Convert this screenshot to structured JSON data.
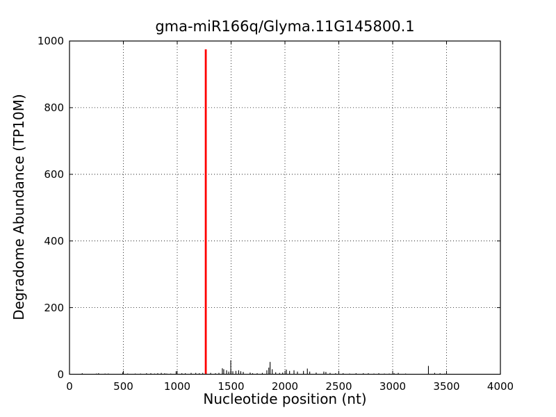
{
  "chart_data": {
    "type": "bar",
    "title": "gma-miR166q/Glyma.11G145800.1",
    "xlabel": "Nucleotide position (nt)",
    "ylabel": "Degradome Abundance (TP10M)",
    "xlim": [
      0,
      4000
    ],
    "ylim": [
      0,
      1000
    ],
    "xticks": [
      0,
      500,
      1000,
      1500,
      2000,
      2500,
      3000,
      3500,
      4000
    ],
    "yticks": [
      0,
      200,
      400,
      600,
      800,
      1000
    ],
    "grid": "dotted",
    "legend_position": "none",
    "colors": {
      "highlight_peak": "#ff0000",
      "background_signal": "#000000",
      "frame": "#000000",
      "background": "#ffffff"
    },
    "highlight_peak": {
      "x": 1265,
      "y": 975
    },
    "series": [
      {
        "name": "degradome-background-signal",
        "points": [
          [
            118,
            3
          ],
          [
            250,
            2
          ],
          [
            270,
            3
          ],
          [
            330,
            2
          ],
          [
            360,
            2
          ],
          [
            495,
            6
          ],
          [
            540,
            2
          ],
          [
            610,
            2
          ],
          [
            660,
            2
          ],
          [
            715,
            3
          ],
          [
            755,
            3
          ],
          [
            790,
            2
          ],
          [
            819,
            3
          ],
          [
            852,
            4
          ],
          [
            884,
            3
          ],
          [
            903,
            2
          ],
          [
            940,
            2
          ],
          [
            990,
            9
          ],
          [
            1043,
            3
          ],
          [
            1075,
            3
          ],
          [
            1129,
            4
          ],
          [
            1172,
            4
          ],
          [
            1205,
            3
          ],
          [
            1237,
            4
          ],
          [
            1310,
            4
          ],
          [
            1355,
            3
          ],
          [
            1387,
            4
          ],
          [
            1419,
            18
          ],
          [
            1432,
            15
          ],
          [
            1458,
            12
          ],
          [
            1478,
            8
          ],
          [
            1497,
            42
          ],
          [
            1516,
            9
          ],
          [
            1545,
            10
          ],
          [
            1570,
            12
          ],
          [
            1590,
            9
          ],
          [
            1613,
            7
          ],
          [
            1677,
            5
          ],
          [
            1700,
            3
          ],
          [
            1742,
            3
          ],
          [
            1790,
            4
          ],
          [
            1832,
            12
          ],
          [
            1850,
            20
          ],
          [
            1862,
            37
          ],
          [
            1882,
            15
          ],
          [
            1914,
            6
          ],
          [
            1950,
            4
          ],
          [
            1979,
            5
          ],
          [
            2013,
            14
          ],
          [
            2043,
            10
          ],
          [
            2084,
            12
          ],
          [
            2116,
            8
          ],
          [
            2172,
            10
          ],
          [
            2208,
            17
          ],
          [
            2230,
            8
          ],
          [
            2290,
            5
          ],
          [
            2361,
            8
          ],
          [
            2380,
            7
          ],
          [
            2419,
            4
          ],
          [
            2470,
            3
          ],
          [
            2540,
            3
          ],
          [
            2600,
            2
          ],
          [
            2660,
            3
          ],
          [
            2727,
            3
          ],
          [
            2774,
            3
          ],
          [
            2826,
            2
          ],
          [
            2871,
            3
          ],
          [
            2923,
            2
          ],
          [
            2968,
            2
          ],
          [
            3013,
            3
          ],
          [
            3052,
            4
          ],
          [
            3120,
            2
          ],
          [
            3332,
            25
          ],
          [
            3390,
            4
          ],
          [
            3440,
            3
          ],
          [
            3485,
            2
          ]
        ]
      }
    ]
  }
}
